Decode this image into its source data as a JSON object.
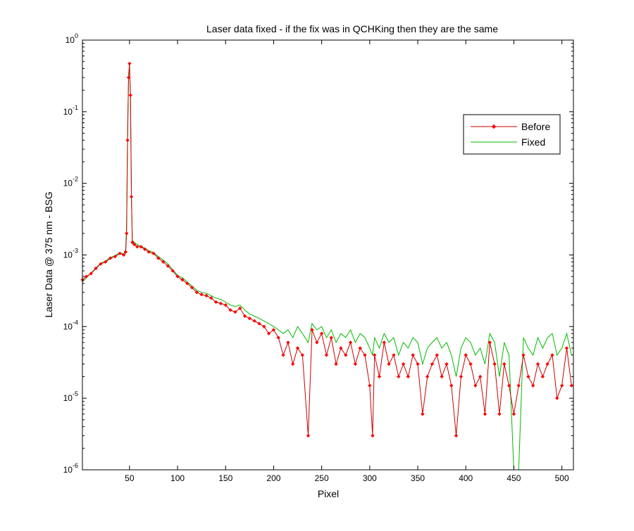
{
  "chart_data": {
    "type": "line",
    "title": "Laser data fixed - if the fix was in QCHKing then they are the same",
    "xlabel": "Pixel",
    "ylabel": "Laser Data @ 375 nm - BSG",
    "xlim": [
      1,
      512
    ],
    "ylim": [
      1e-06,
      1
    ],
    "yscale": "log",
    "grid": false,
    "legend_position": "top-right",
    "x_ticks": [
      {
        "value": 50,
        "label": "50"
      },
      {
        "value": 100,
        "label": "100"
      },
      {
        "value": 150,
        "label": "150"
      },
      {
        "value": 200,
        "label": "200"
      },
      {
        "value": 250,
        "label": "250"
      },
      {
        "value": 300,
        "label": "300"
      },
      {
        "value": 350,
        "label": "350"
      },
      {
        "value": 400,
        "label": "400"
      },
      {
        "value": 450,
        "label": "450"
      },
      {
        "value": 500,
        "label": "500"
      }
    ],
    "y_ticks": [
      {
        "value": 1,
        "base": "10",
        "exp": "0"
      },
      {
        "value": 0.1,
        "base": "10",
        "exp": "-1"
      },
      {
        "value": 0.01,
        "base": "10",
        "exp": "-2"
      },
      {
        "value": 0.001,
        "base": "10",
        "exp": "-3"
      },
      {
        "value": 0.0001,
        "base": "10",
        "exp": "-4"
      },
      {
        "value": 1e-05,
        "base": "10",
        "exp": "-5"
      },
      {
        "value": 1e-06,
        "base": "10",
        "exp": "-6"
      }
    ],
    "series": [
      {
        "name": "Before",
        "color": "#cc0000",
        "marker": "diamond",
        "marker_color": "#ff0000",
        "x": [
          1,
          5,
          10,
          15,
          20,
          25,
          30,
          35,
          40,
          44,
          46,
          47,
          48,
          49,
          50,
          51,
          52,
          53,
          55,
          58,
          62,
          66,
          70,
          75,
          80,
          85,
          90,
          95,
          100,
          105,
          110,
          115,
          120,
          125,
          130,
          135,
          140,
          145,
          150,
          155,
          160,
          165,
          170,
          175,
          180,
          185,
          190,
          195,
          200,
          205,
          210,
          215,
          220,
          225,
          230,
          236,
          240,
          245,
          250,
          255,
          260,
          265,
          270,
          275,
          280,
          285,
          290,
          295,
          300,
          303,
          305,
          310,
          315,
          320,
          325,
          330,
          335,
          340,
          345,
          350,
          355,
          360,
          365,
          370,
          375,
          380,
          385,
          390,
          395,
          400,
          405,
          410,
          415,
          420,
          425,
          430,
          435,
          440,
          445,
          450,
          455,
          460,
          465,
          470,
          475,
          480,
          485,
          490,
          495,
          500,
          505,
          510
        ],
        "y": [
          0.00045,
          0.0005,
          0.00055,
          0.00065,
          0.00075,
          0.0008,
          0.0009,
          0.00095,
          0.00105,
          0.001,
          0.0011,
          0.002,
          0.04,
          0.3,
          0.47,
          0.17,
          0.0065,
          0.0015,
          0.0014,
          0.0013,
          0.0013,
          0.0012,
          0.0011,
          0.00105,
          0.0009,
          0.0008,
          0.0007,
          0.0006,
          0.0005,
          0.00045,
          0.0004,
          0.00035,
          0.0003,
          0.00028,
          0.00027,
          0.00025,
          0.00022,
          0.00021,
          0.0002,
          0.00017,
          0.00016,
          0.00018,
          0.00014,
          0.00013,
          0.00012,
          0.00011,
          0.0001,
          8e-05,
          9e-05,
          7e-05,
          4e-05,
          6e-05,
          3e-05,
          5e-05,
          4e-05,
          3e-06,
          9e-05,
          6e-05,
          8e-05,
          4e-05,
          7e-05,
          3e-05,
          5e-05,
          4e-05,
          6e-05,
          3e-05,
          5e-05,
          4e-05,
          1.5e-05,
          3e-06,
          4e-05,
          2e-05,
          6e-05,
          3e-05,
          4e-05,
          2e-05,
          3e-05,
          2e-05,
          4e-05,
          3e-05,
          6e-06,
          2e-05,
          3e-05,
          4e-05,
          2e-05,
          3e-05,
          1.5e-05,
          3e-06,
          2e-05,
          4e-05,
          3e-05,
          1.5e-05,
          2e-05,
          6e-06,
          6e-05,
          3e-05,
          6e-06,
          3e-05,
          1.5e-05,
          6e-06,
          1.5e-05,
          4e-05,
          2e-05,
          1.5e-05,
          3e-05,
          2e-05,
          3e-05,
          4e-05,
          1e-05,
          1.5e-05,
          5e-05,
          1.5e-05
        ]
      },
      {
        "name": "Fixed",
        "color": "#00bb00",
        "marker": "none",
        "x": [
          1,
          5,
          10,
          15,
          20,
          25,
          30,
          35,
          40,
          44,
          46,
          47,
          48,
          49,
          50,
          51,
          52,
          53,
          55,
          58,
          62,
          66,
          70,
          75,
          80,
          85,
          90,
          95,
          100,
          105,
          110,
          115,
          120,
          125,
          130,
          135,
          140,
          145,
          150,
          155,
          160,
          165,
          170,
          175,
          180,
          185,
          190,
          195,
          200,
          205,
          210,
          215,
          220,
          225,
          230,
          236,
          240,
          245,
          250,
          255,
          260,
          265,
          270,
          275,
          280,
          285,
          290,
          295,
          300,
          303,
          305,
          310,
          315,
          320,
          325,
          330,
          335,
          340,
          345,
          350,
          355,
          360,
          365,
          370,
          375,
          380,
          385,
          390,
          395,
          400,
          405,
          410,
          415,
          420,
          425,
          430,
          435,
          440,
          445,
          450,
          455,
          460,
          465,
          470,
          475,
          480,
          485,
          490,
          495,
          500,
          505,
          510
        ],
        "y": [
          0.00042,
          0.00048,
          0.00056,
          0.00066,
          0.00076,
          0.00082,
          0.00092,
          0.00098,
          0.00108,
          0.00102,
          0.0012,
          0.0025,
          0.05,
          0.32,
          0.45,
          0.15,
          0.0055,
          0.0016,
          0.0015,
          0.0014,
          0.0013,
          0.00125,
          0.00115,
          0.00108,
          0.00095,
          0.00085,
          0.00075,
          0.00062,
          0.00052,
          0.00048,
          0.00042,
          0.00037,
          0.00032,
          0.0003,
          0.00029,
          0.00027,
          0.00025,
          0.00024,
          0.00022,
          0.0002,
          0.00019,
          0.0002,
          0.00017,
          0.00015,
          0.00014,
          0.00013,
          0.00012,
          0.00011,
          0.0001,
          9e-05,
          8e-05,
          9e-05,
          7e-05,
          0.0001,
          8e-05,
          6e-05,
          0.00011,
          9e-05,
          0.0001,
          7e-05,
          9e-05,
          6e-05,
          8e-05,
          7e-05,
          9e-05,
          6e-05,
          8e-05,
          7e-05,
          5e-05,
          4e-05,
          7e-05,
          5e-05,
          8e-05,
          6e-05,
          7e-05,
          4e-05,
          6e-05,
          5e-05,
          7e-05,
          6e-05,
          3e-05,
          5e-05,
          6e-05,
          7e-05,
          5e-05,
          6e-05,
          4e-05,
          2e-05,
          5e-05,
          7e-05,
          6e-05,
          4e-05,
          5e-05,
          3e-05,
          8e-05,
          6e-05,
          2e-05,
          6e-05,
          4e-05,
          1e-06,
          1e-06,
          7e-05,
          5e-05,
          4e-05,
          7e-05,
          5e-05,
          7e-05,
          8e-05,
          4e-05,
          5e-05,
          8e-05,
          4e-05
        ]
      }
    ]
  }
}
